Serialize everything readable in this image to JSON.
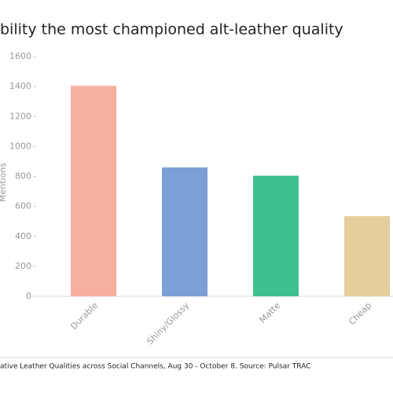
{
  "chart_data": {
    "type": "bar",
    "title": "bility the most championed alt-leather quality",
    "y_label": "Mentions",
    "source": "ative Leather Qualities across Social Channels, Aug 30 - October 8. Source: Pulsar TRAC",
    "categories": [
      "Durable",
      "Shiny/Glossy",
      "Matte",
      "Cheap"
    ],
    "values": [
      1405,
      860,
      805,
      535
    ],
    "colors": [
      "#f7b0a0",
      "#7b9fd6",
      "#3fc08f",
      "#e6cd9c"
    ],
    "ylim": [
      0,
      1600
    ],
    "yticks": [
      0,
      200,
      400,
      600,
      800,
      1000,
      1200,
      1400,
      1600
    ]
  }
}
